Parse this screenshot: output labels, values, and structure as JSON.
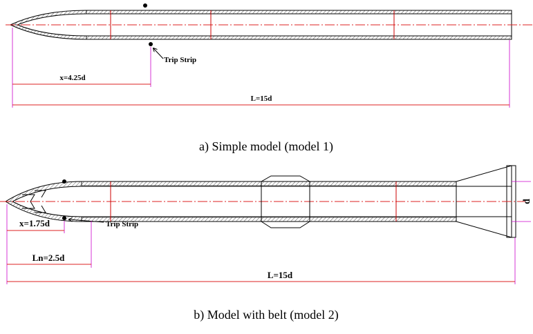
{
  "figure_a": {
    "trip_strip_label": "Trip Strip",
    "x_label": "x=4.25d",
    "length_label": "L=15d",
    "caption": "a) Simple model (model 1)"
  },
  "figure_b": {
    "trip_strip_label": "Trip Strip",
    "x_label": "x=1.75d",
    "nose_length_label": "Ln=2.5d",
    "length_label": "L=15d",
    "diameter_label": "d",
    "caption": "b) Model with belt (model 2)"
  }
}
